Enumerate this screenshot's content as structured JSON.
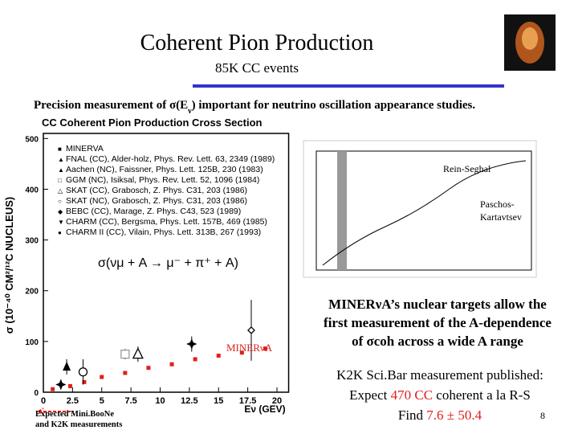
{
  "title": "Coherent Pion Production",
  "subtitle": "85K CC events",
  "intro": [
    "Precision measurement of ",
    "σ",
    "(E",
    "ν",
    ") important for neutrino oscillation appearance studies."
  ],
  "chart": {
    "type": "scatter",
    "title": "CC Coherent Pion Production Cross Section",
    "y_label": "σ (10⁻⁴⁰ CM²/¹²C NUCLEUS)",
    "x_label": "Eν (GEV)",
    "formula": "σ(νμ + A → μ⁻ + π⁺ + A)",
    "xlim": [
      0,
      21
    ],
    "xticks": [
      0,
      2.5,
      5,
      7.5,
      10,
      12.5,
      15,
      17.5,
      20
    ],
    "ylim": [
      0,
      510
    ],
    "yticks": [
      0,
      100,
      200,
      300,
      400,
      500
    ],
    "legend": [
      "MINERVA",
      "FNAL (CC), Alder-holz, Phys. Rev. Lett. 63, 2349 (1989)",
      "Aachen (NC), Faissner, Phys. Lett. 125B, 230 (1983)",
      "GGM (NC), Isiksal, Phys. Rev. Lett. 52, 1096 (1984)",
      "SKAT (CC), Grabosch, Z. Phys. C31, 203 (1986)",
      "SKAT (NC), Grabosch, Z. Phys. C31, 203 (1986)",
      "BEBC (CC), Marage, Z. Phys. C43, 523 (1989)",
      "CHARM (CC), Bergsma, Phys. Lett. 157B, 469 (1985)",
      "CHARM II (CC), Vilain, Phys. Lett. 313B, 267 (1993)"
    ],
    "minerva": {
      "color": "#e0201c",
      "x": [
        0.8,
        2.3,
        3.5,
        5,
        7,
        9,
        11,
        13,
        15,
        17,
        19
      ],
      "y": [
        6,
        12,
        20,
        30,
        38,
        48,
        55,
        65,
        72,
        78,
        86
      ]
    },
    "points": [
      {
        "x": 1.5,
        "y": 15,
        "err": 10,
        "symbol": "star"
      },
      {
        "x": 2,
        "y": 50,
        "err": 15,
        "symbol": "filled-triangle"
      },
      {
        "x": 3.4,
        "y": 40,
        "err": 25,
        "symbol": "circle"
      },
      {
        "x": 7,
        "y": 75,
        "err": 10,
        "symbol": "open-square"
      },
      {
        "x": 8.1,
        "y": 75,
        "err": 15,
        "symbol": "triangle"
      },
      {
        "x": 12.7,
        "y": 95,
        "err": 15,
        "symbol": "star"
      },
      {
        "x": 17.8,
        "y": 122,
        "err": 60,
        "symbol": "diamond"
      }
    ],
    "annotation": "MINERνA"
  },
  "note": [
    "Expected Mini.BooNe",
    "and K2K measurements"
  ],
  "inset": {
    "rein_seghal": "Rein-Seghal",
    "paschos": [
      "Paschos-",
      "Kartavtsev"
    ]
  },
  "right_text": [
    "MINERνA’s nuclear targets allow the",
    "first measurement of the A-dependence",
    "of σcoh across a wide A range"
  ],
  "k2k": [
    [
      "K2K Sci.Bar measurement published:"
    ],
    [
      "Expect ",
      "470 CC",
      " coherent a la R-S"
    ],
    [
      "Find ",
      "7.6 ± 50.4"
    ]
  ],
  "page_number": "8"
}
